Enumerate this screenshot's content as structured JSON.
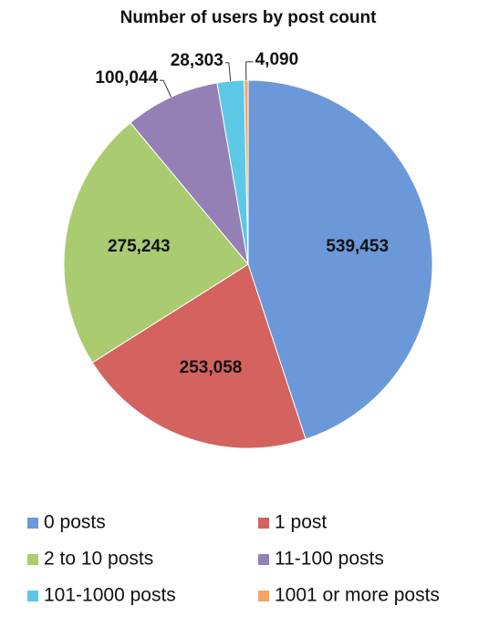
{
  "chart_data": {
    "type": "pie",
    "title": "Number of users by post count",
    "categories": [
      "0 posts",
      "1 post",
      "2 to 10 posts",
      "11-100 posts",
      "101-1000 posts",
      "1001 or more posts"
    ],
    "values": [
      539453,
      253058,
      275243,
      100044,
      28303,
      4090
    ],
    "value_labels": [
      "539,453",
      "253,058",
      "275,243",
      "100,044",
      "28,303",
      "4,090"
    ],
    "colors": [
      "#6b98d9",
      "#d4625e",
      "#aacb6f",
      "#9580b6",
      "#5cc8e6",
      "#f5a55f"
    ],
    "legend": "bottom"
  }
}
